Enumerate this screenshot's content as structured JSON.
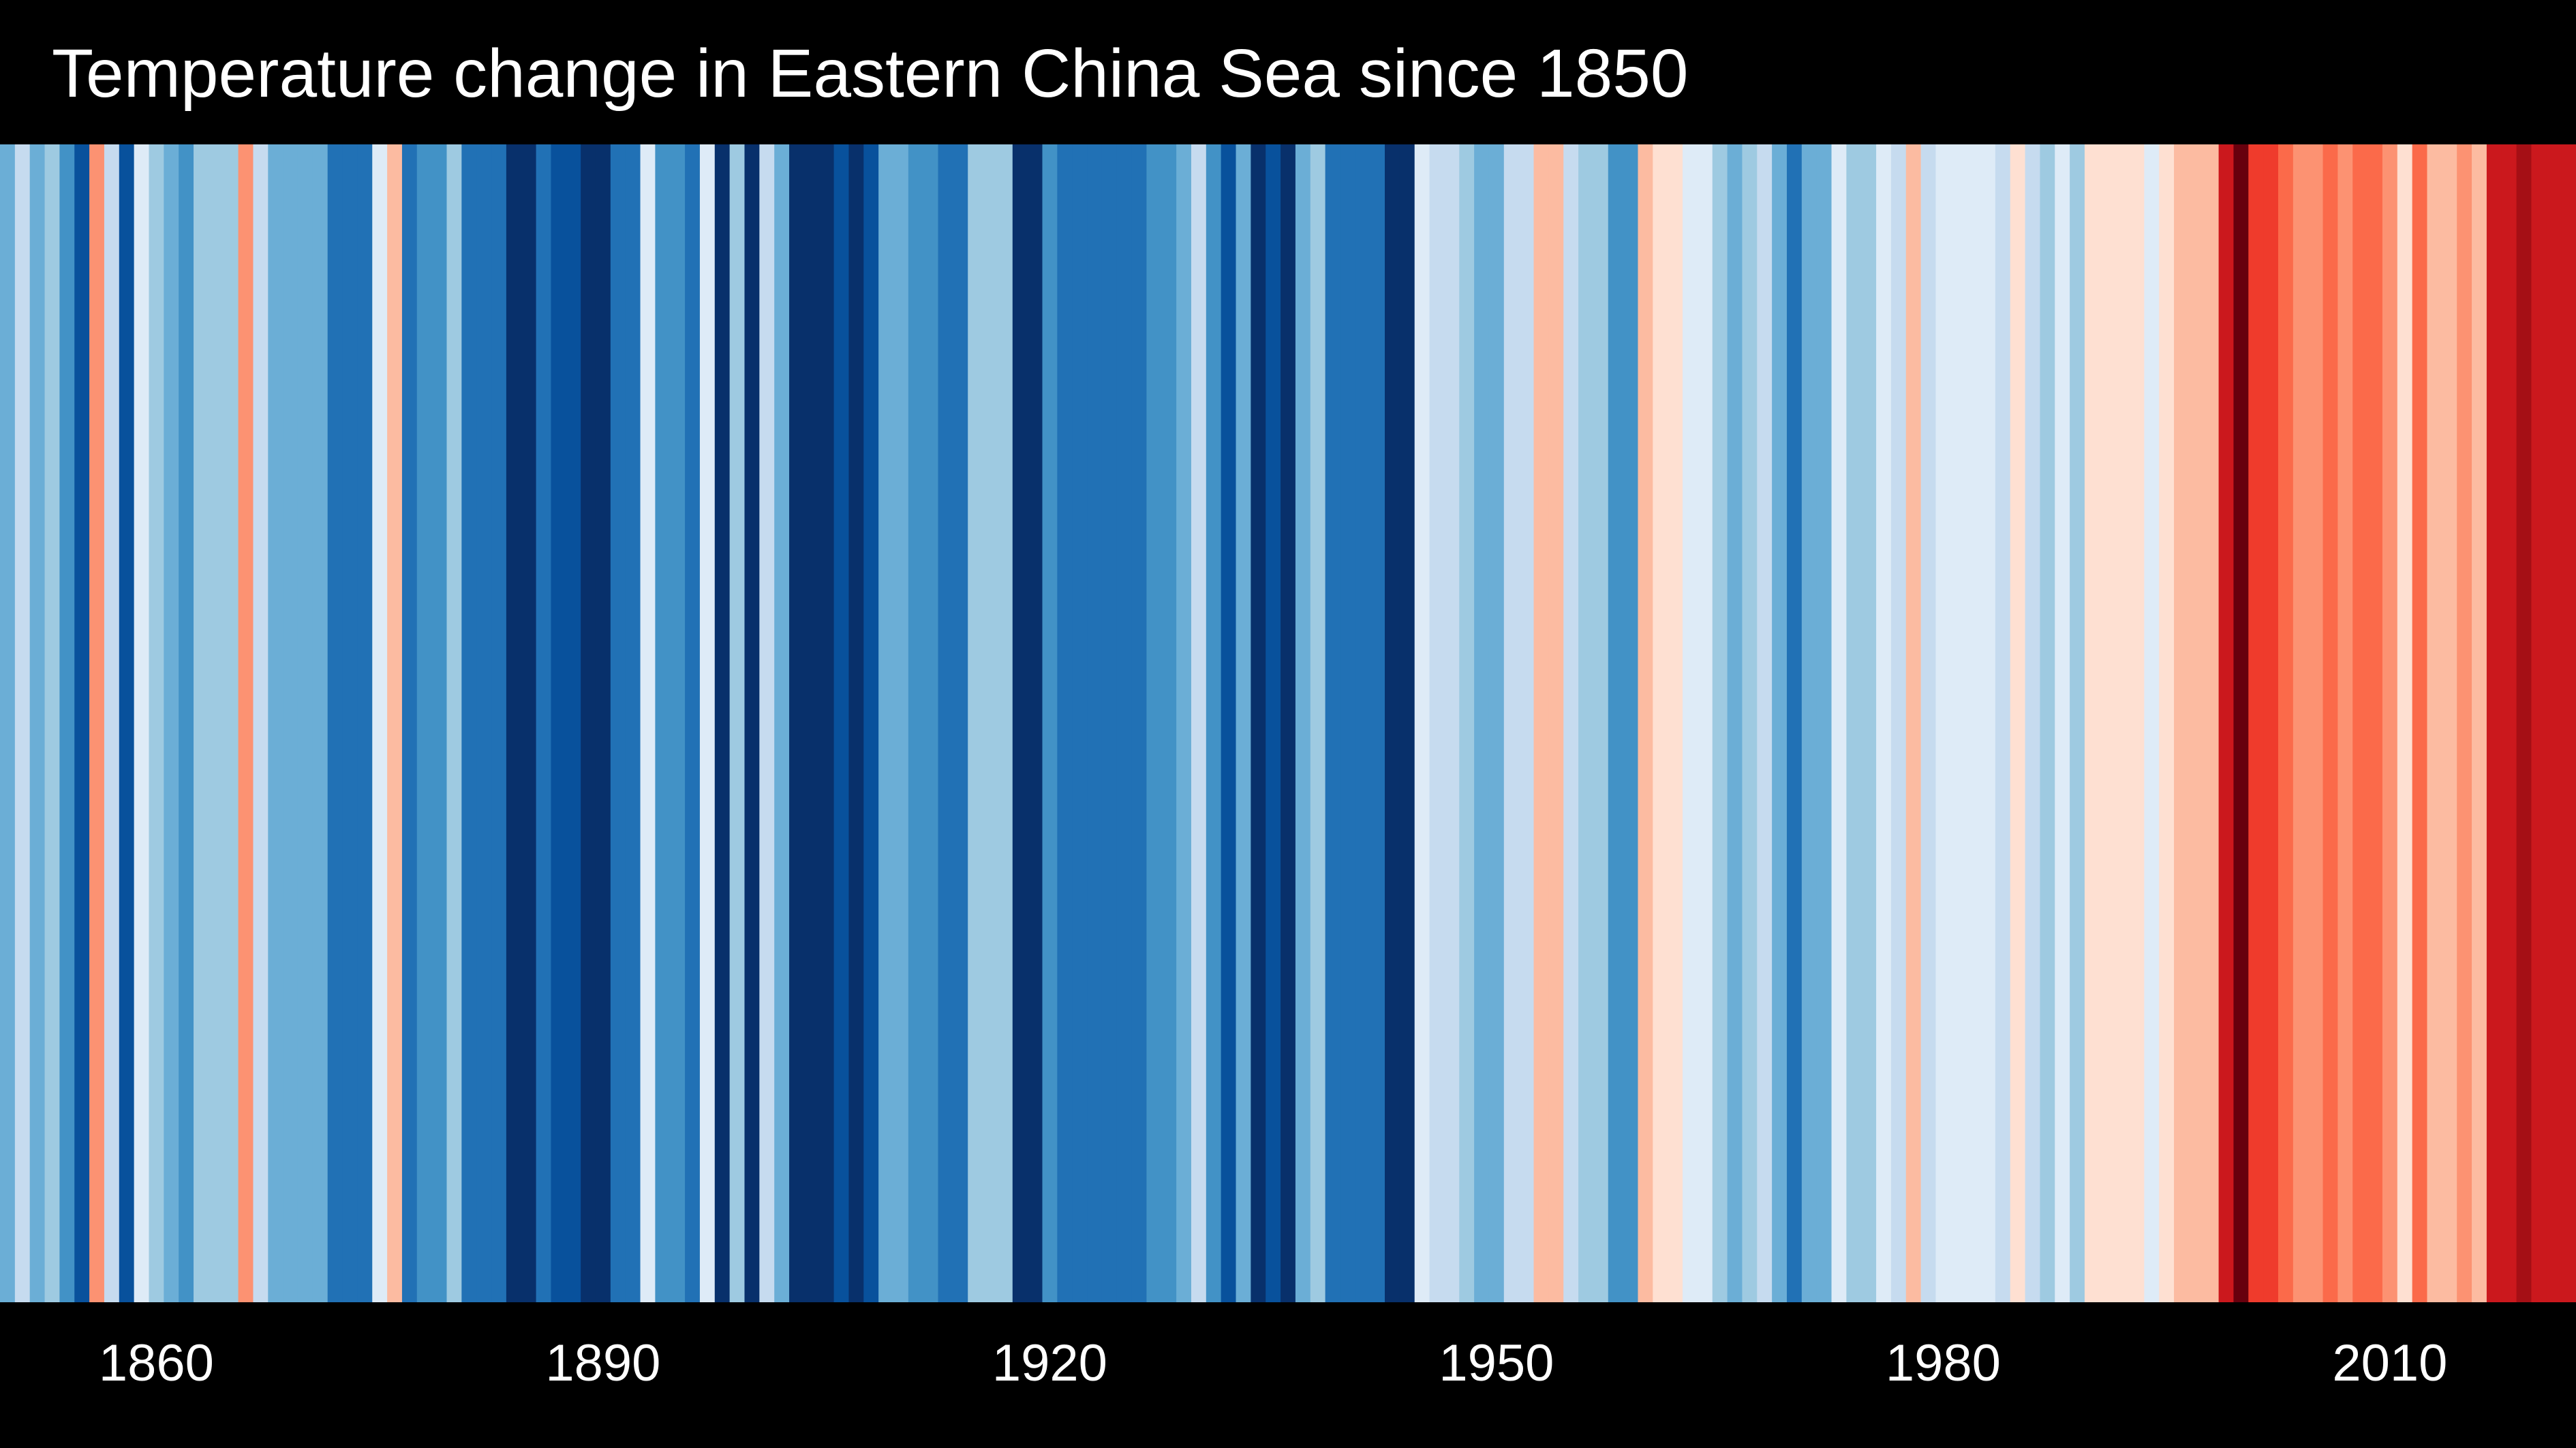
{
  "chart_data": {
    "type": "heatmap",
    "title": "Temperature change in Eastern China Sea since 1850",
    "x_start_year": 1850,
    "x_end_year": 2022,
    "xtick_labels": [
      "1860",
      "1890",
      "1920",
      "1950",
      "1980",
      "2010"
    ],
    "xtick_years": [
      1860,
      1890,
      1920,
      1950,
      1980,
      2010
    ],
    "grid": false,
    "legend": "none",
    "color_scale": [
      "#08306b",
      "#08519c",
      "#2171b5",
      "#4292c6",
      "#6baed6",
      "#9ecae1",
      "#c6dbef",
      "#deebf7",
      "#fee0d2",
      "#fcbba1",
      "#fc9272",
      "#fb6a4a",
      "#ef3b2c",
      "#cb181d",
      "#a50f15",
      "#67000d"
    ],
    "stripe_colors": [
      "#6baed6",
      "#c6dbef",
      "#6baed6",
      "#9ecae1",
      "#4292c6",
      "#08519c",
      "#fc9272",
      "#c6dbef",
      "#08519c",
      "#deebf7",
      "#9ecae1",
      "#6baed6",
      "#4292c6",
      "#9ecae1",
      "#9ecae1",
      "#9ecae1",
      "#fc9272",
      "#c6dbef",
      "#6baed6",
      "#6baed6",
      "#6baed6",
      "#6baed6",
      "#2171b5",
      "#2171b5",
      "#2171b5",
      "#deebf7",
      "#fcbba1",
      "#2171b5",
      "#4292c6",
      "#4292c6",
      "#9ecae1",
      "#2171b5",
      "#2171b5",
      "#2171b5",
      "#08306b",
      "#08306b",
      "#2171b5",
      "#08519c",
      "#08519c",
      "#08306b",
      "#08306b",
      "#2171b5",
      "#2171b5",
      "#deebf7",
      "#4292c6",
      "#4292c6",
      "#2171b5",
      "#deebf7",
      "#08306b",
      "#9ecae1",
      "#08306b",
      "#c6dbef",
      "#6baed6",
      "#08306b",
      "#08306b",
      "#08306b",
      "#08519c",
      "#08306b",
      "#08519c",
      "#6baed6",
      "#6baed6",
      "#4292c6",
      "#4292c6",
      "#2171b5",
      "#2171b5",
      "#9ecae1",
      "#9ecae1",
      "#9ecae1",
      "#08306b",
      "#08306b",
      "#4292c6",
      "#2171b5",
      "#2171b5",
      "#2171b5",
      "#2171b5",
      "#2171b5",
      "#2171b5",
      "#4292c6",
      "#4292c6",
      "#6baed6",
      "#c6dbef",
      "#4292c6",
      "#08519c",
      "#6baed6",
      "#08306b",
      "#08519c",
      "#08306b",
      "#6baed6",
      "#9ecae1",
      "#2171b5",
      "#2171b5",
      "#2171b5",
      "#2171b5",
      "#08306b",
      "#08306b",
      "#deebf7",
      "#c6dbef",
      "#c6dbef",
      "#9ecae1",
      "#6baed6",
      "#6baed6",
      "#c6dbef",
      "#c6dbef",
      "#fcbba1",
      "#fcbba1",
      "#c6dbef",
      "#9ecae1",
      "#9ecae1",
      "#4292c6",
      "#4292c6",
      "#fcbba1",
      "#fee0d2",
      "#fee0d2",
      "#deebf7",
      "#deebf7",
      "#9ecae1",
      "#6baed6",
      "#9ecae1",
      "#c6dbef",
      "#6baed6",
      "#2171b5",
      "#6baed6",
      "#6baed6",
      "#deebf7",
      "#9ecae1",
      "#9ecae1",
      "#deebf7",
      "#c6dbef",
      "#fcbba1",
      "#c6dbef",
      "#deebf7",
      "#deebf7",
      "#deebf7",
      "#deebf7",
      "#c6dbef",
      "#fee0d2",
      "#c6dbef",
      "#9ecae1",
      "#deebf7",
      "#9ecae1",
      "#fee0d2",
      "#fee0d2",
      "#fee0d2",
      "#fee0d2",
      "#deebf7",
      "#fee0d2",
      "#fcbba1",
      "#fcbba1",
      "#fcbba1",
      "#cb181d",
      "#67000d",
      "#ef3b2c",
      "#ef3b2c",
      "#fb6a4a",
      "#fc9272",
      "#fc9272",
      "#fb6a4a",
      "#fc9272",
      "#fb6a4a",
      "#fb6a4a",
      "#fc9272",
      "#fee0d2",
      "#fb6a4a",
      "#fcbba1",
      "#fcbba1",
      "#fc9272",
      "#fcbba1",
      "#cb181d",
      "#cb181d",
      "#a50f15",
      "#cb181d",
      "#cb181d",
      "#cb181d"
    ]
  }
}
